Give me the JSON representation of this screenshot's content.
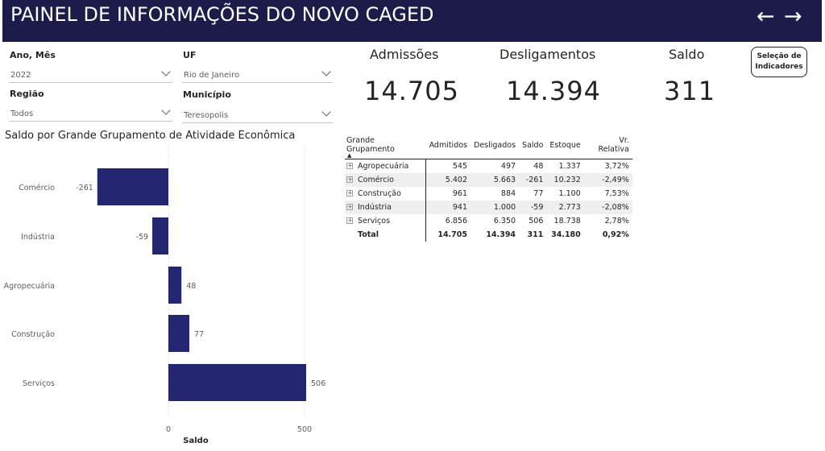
{
  "header": {
    "title": "PAINEL DE INFORMAÇÕES DO NOVO CAGED",
    "back_glyph": "←",
    "forward_glyph": "→"
  },
  "filters": {
    "ano_mes": {
      "label": "Ano, Mês",
      "value": "2022"
    },
    "uf": {
      "label": "UF",
      "value": "Rio de Janeiro"
    },
    "regiao": {
      "label": "Região",
      "value": "Todos"
    },
    "municipio": {
      "label": "Município",
      "value": "Teresopolis"
    }
  },
  "kpis": {
    "admissoes": {
      "label": "Admissões",
      "value": "14.705"
    },
    "desligamentos": {
      "label": "Desligamentos",
      "value": "14.394"
    },
    "saldo": {
      "label": "Saldo",
      "value": "311"
    }
  },
  "selection_button": {
    "line1": "Seleção de",
    "line2": "Indicadores"
  },
  "table": {
    "headers": [
      "Grande Grupamento",
      "Admitidos",
      "Desligados",
      "Saldo",
      "Estoque",
      "Vr. Relativa"
    ],
    "rows": [
      [
        "Agropecuária",
        "545",
        "497",
        "48",
        "1.337",
        "3,72%"
      ],
      [
        "Comércio",
        "5.402",
        "5.663",
        "-261",
        "10.232",
        "-2,49%"
      ],
      [
        "Construção",
        "961",
        "884",
        "77",
        "1.100",
        "7,53%"
      ],
      [
        "Indústria",
        "941",
        "1.000",
        "-59",
        "2.773",
        "-2,08%"
      ],
      [
        "Serviços",
        "6.856",
        "6.350",
        "506",
        "18.738",
        "2,78%"
      ]
    ],
    "total": [
      "Total",
      "14.705",
      "14.394",
      "311",
      "34.180",
      "0,92%"
    ],
    "expand_glyph": "+",
    "sort_glyph": "▲"
  },
  "chart_data": {
    "type": "bar",
    "orientation": "horizontal",
    "title": "Saldo por Grande Grupamento de Atividade Econômica",
    "categories": [
      "Comércio",
      "Indústria",
      "Agropecuária",
      "Construção",
      "Serviços"
    ],
    "values": [
      -261,
      -59,
      48,
      77,
      506
    ],
    "value_labels": [
      "-261",
      "-59",
      "48",
      "77",
      "506"
    ],
    "xlabel": "Saldo",
    "ylabel": "",
    "xticks": [
      "0",
      "500"
    ],
    "xtick_values": [
      0,
      500
    ],
    "xlim": [
      -300,
      520
    ],
    "bar_color": "#252671",
    "grid": "vertical dotted at 0 and 500"
  }
}
